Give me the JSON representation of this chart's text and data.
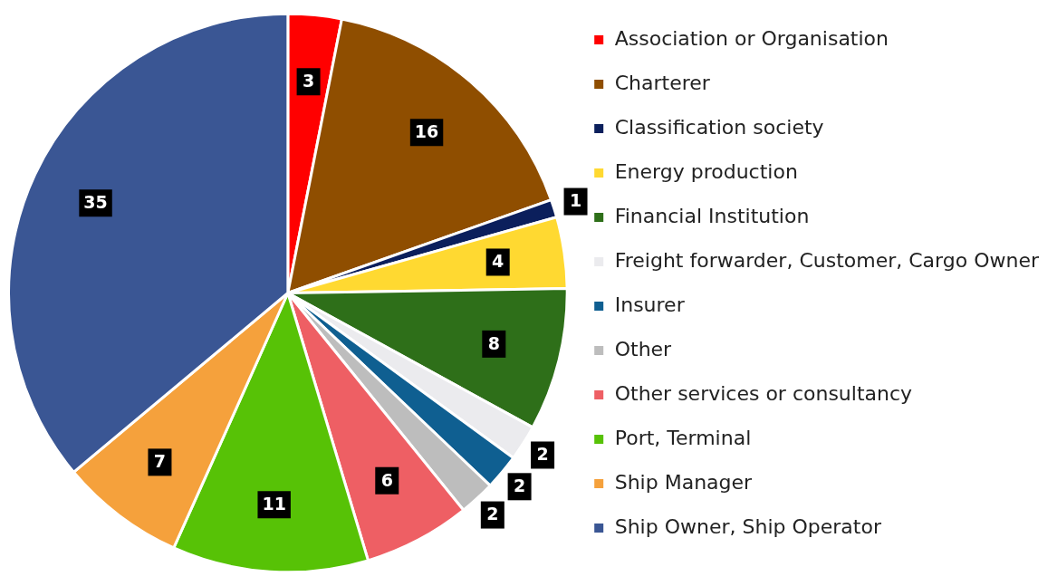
{
  "chart_data": {
    "type": "pie",
    "categories": [
      "Association or Organisation",
      "Charterer",
      "Classification society",
      "Energy production",
      "Financial Institution",
      "Freight forwarder, Customer, Cargo Owner",
      "Insurer",
      "Other",
      "Other services or consultancy",
      "Port, Terminal",
      "Ship Manager",
      "Ship Owner, Ship Operator"
    ],
    "values": [
      3,
      16,
      1,
      4,
      8,
      2,
      2,
      2,
      6,
      11,
      7,
      35
    ],
    "colors": [
      "#ff0000",
      "#8f4e00",
      "#0b1f5c",
      "#ffd931",
      "#2e6f19",
      "#ebebee",
      "#0f5f91",
      "#bdbdbd",
      "#ee5f64",
      "#57c206",
      "#f5a13c",
      "#3a5694"
    ],
    "legend": "right",
    "data_labels": true
  }
}
